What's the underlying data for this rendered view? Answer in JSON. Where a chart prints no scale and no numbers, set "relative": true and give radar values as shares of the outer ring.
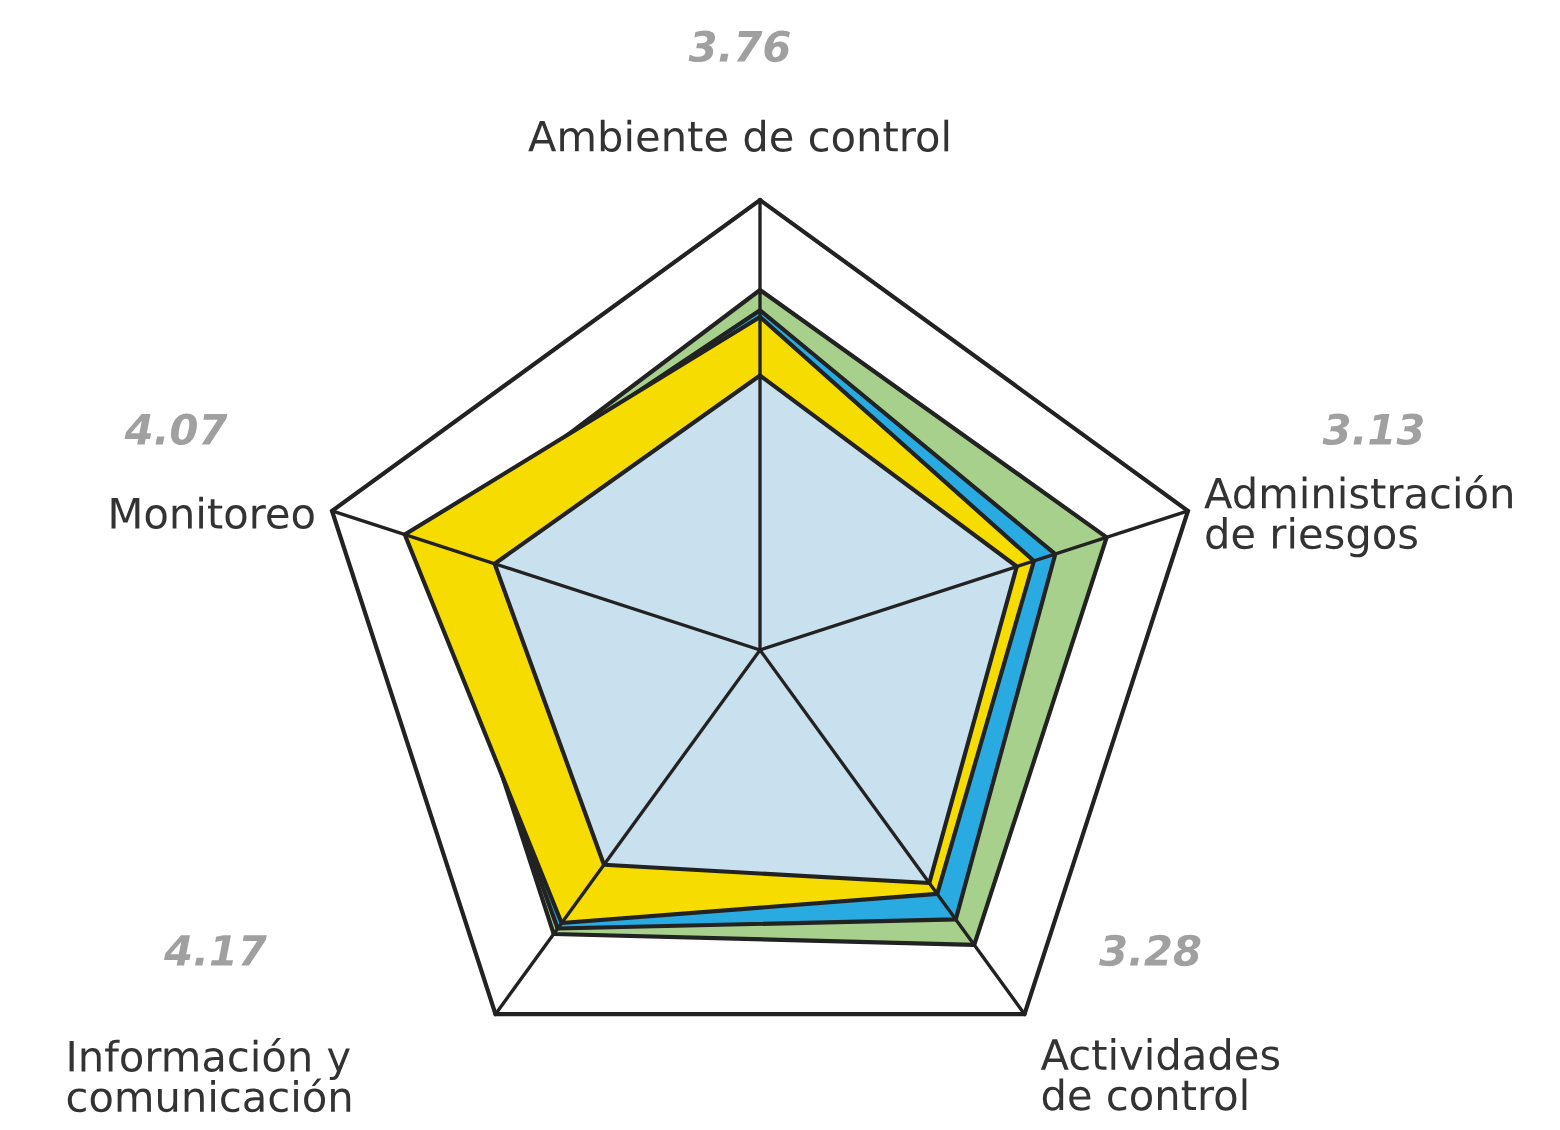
{
  "chart_data": {
    "type": "radar",
    "relative": true,
    "categories": [
      "Ambiente de control",
      "Administración\nde riesgos",
      "Actividades\nde control",
      "Información y\ncomunicación",
      "Monitoreo"
    ],
    "series": [
      {
        "color": "#a8d08d",
        "values": [
          0.8,
          0.81,
          0.81,
          0.78,
          0.78
        ]
      },
      {
        "color": "#29abe2",
        "values": [
          0.755,
          0.69,
          0.74,
          0.765,
          0.8
        ]
      },
      {
        "color": "#f7dc00",
        "values": [
          0.74,
          0.64,
          0.67,
          0.75,
          0.83
        ]
      },
      {
        "color": "#c9e0ef",
        "values": [
          0.61,
          0.6,
          0.64,
          0.59,
          0.62
        ]
      }
    ],
    "annotations": [
      "3.76",
      "3.13",
      "3.28",
      "4.17",
      "4.07"
    ]
  }
}
